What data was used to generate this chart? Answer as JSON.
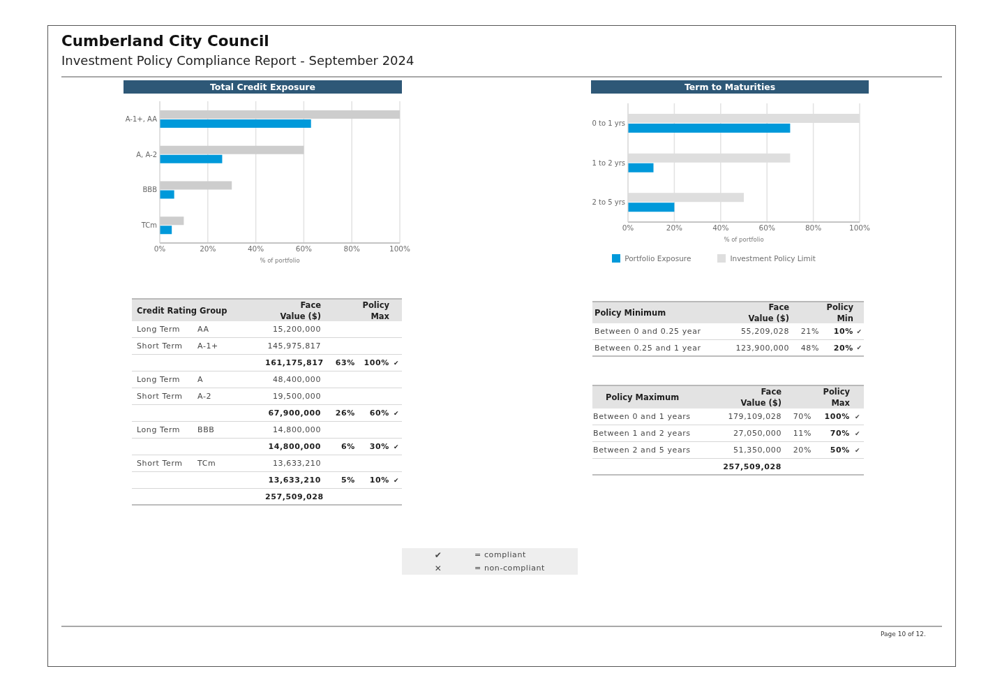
{
  "chart_data": [
    {
      "type": "other",
      "title": "Cumberland City Council",
      "subtitle": "Investment Policy Compliance Report - September 2024"
    },
    {
      "type": "bar",
      "orientation": "horizontal",
      "title": "Total Credit Exposure",
      "xlabel": "% of portfolio",
      "categories": [
        "A-1+, AA",
        "A, A-2",
        "BBB",
        "TCm"
      ],
      "series": [
        {
          "color": "#0099da",
          "values": [
            63,
            26,
            6,
            5
          ]
        },
        {
          "color": "#cdcdcd",
          "values": [
            100,
            60,
            30,
            10
          ]
        }
      ],
      "xlim": [
        0,
        100
      ],
      "xticks": [
        {
          "value": 0,
          "label": "0%"
        },
        {
          "value": 20,
          "label": "20%"
        },
        {
          "value": 40,
          "label": "40%"
        },
        {
          "value": 60,
          "label": "60%"
        },
        {
          "value": 80,
          "label": "80%"
        },
        {
          "value": 100,
          "label": "100%"
        }
      ],
      "grid": "x"
    },
    {
      "type": "bar",
      "orientation": "horizontal",
      "title": "Term to Maturities",
      "xlabel": "% of portfolio",
      "categories": [
        "0 to 1 yrs",
        "1 to 2 yrs",
        "2 to 5 yrs"
      ],
      "series": [
        {
          "name": "Portfolio Exposure",
          "color": "#0099da",
          "values": [
            70,
            11,
            20
          ]
        },
        {
          "name": "Investment Policy Limit",
          "color": "#dedede",
          "values": [
            100,
            70,
            50
          ]
        }
      ],
      "xlim": [
        0,
        100
      ],
      "xticks": [
        {
          "value": 0,
          "label": "0%"
        },
        {
          "value": 20,
          "label": "20%"
        },
        {
          "value": 40,
          "label": "40%"
        },
        {
          "value": 60,
          "label": "60%"
        },
        {
          "value": 80,
          "label": "80%"
        },
        {
          "value": 100,
          "label": "100%"
        }
      ],
      "grid": "x",
      "legend": "bottom"
    },
    {
      "type": "other",
      "categories": [
        "Credit Rating Group",
        null,
        "Face Value ($)",
        null,
        "Policy Max",
        null
      ],
      "cell_labels": [
        [
          "Long Term",
          "AA",
          "15,200,000",
          null,
          null,
          null
        ],
        [
          "Short Term",
          "A-1+",
          "145,975,817",
          null,
          null,
          null
        ],
        [
          null,
          null,
          "161,175,817",
          "63%",
          "100%",
          "✔"
        ],
        [
          "Long Term",
          "A",
          "48,400,000",
          null,
          null,
          null
        ],
        [
          "Short Term",
          "A-2",
          "19,500,000",
          null,
          null,
          null
        ],
        [
          null,
          null,
          "67,900,000",
          "26%",
          "60%",
          "✔"
        ],
        [
          "Long Term",
          "BBB",
          "14,800,000",
          null,
          null,
          null
        ],
        [
          null,
          null,
          "14,800,000",
          "6%",
          "30%",
          "✔"
        ],
        [
          "Short Term",
          "TCm",
          "13,633,210",
          null,
          null,
          null
        ],
        [
          null,
          null,
          "13,633,210",
          "5%",
          "10%",
          "✔"
        ],
        [
          null,
          null,
          "257,509,028",
          null,
          null,
          null
        ]
      ]
    },
    {
      "type": "other",
      "categories": [
        "Policy Minimum",
        "Face Value ($)",
        null,
        "Policy Min",
        null
      ],
      "cell_labels": [
        [
          "Between 0 and 0.25 year",
          "55,209,028",
          "21%",
          "10%",
          "✔"
        ],
        [
          "Between 0.25 and 1 year",
          "123,900,000",
          "48%",
          "20%",
          "✔"
        ]
      ]
    },
    {
      "type": "other",
      "categories": [
        "Policy Maximum",
        "Face Value ($)",
        null,
        "Policy Max",
        null
      ],
      "cell_labels": [
        [
          "Between 0 and 1 years",
          "179,109,028",
          "70%",
          "100%",
          "✔"
        ],
        [
          "Between 1 and 2 years",
          "27,050,000",
          "11%",
          "70%",
          "✔"
        ],
        [
          "Between 2 and 5 years",
          "51,350,000",
          "20%",
          "50%",
          "✔"
        ],
        [
          null,
          "257,509,028",
          null,
          null,
          null
        ]
      ]
    },
    {
      "type": "other",
      "cell_labels": [
        [
          "✔",
          "= compliant"
        ],
        [
          "✕",
          "= non-compliant"
        ]
      ]
    },
    {
      "type": "other",
      "annotations": [
        "Page 10 of 12."
      ]
    }
  ]
}
